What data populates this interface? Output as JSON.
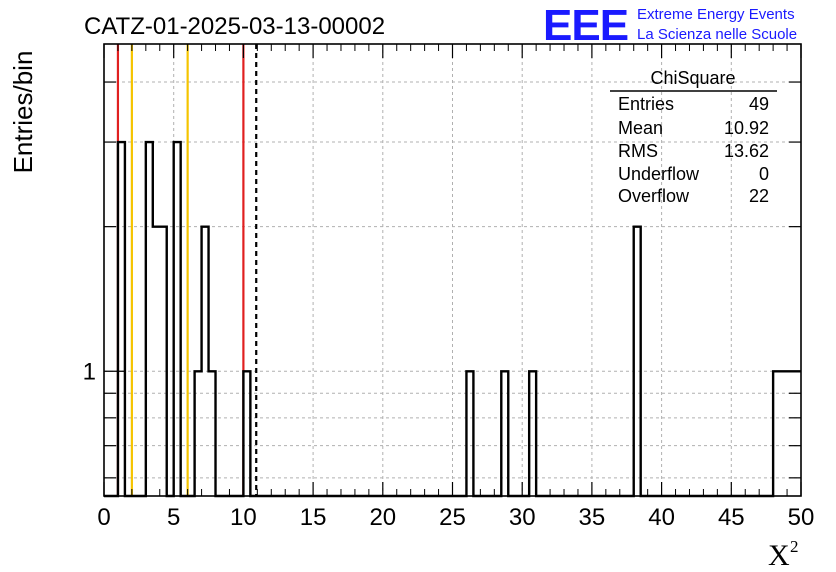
{
  "title": "CATZ-01-2025-03-13-00002",
  "logo": {
    "mark": "EEE",
    "line1": "Extreme Energy Events",
    "line2": "La Scienza nelle Scuole",
    "color": "#1a1aff"
  },
  "stats": {
    "name": "ChiSquare",
    "rows": [
      {
        "label": "Entries",
        "value": "49"
      },
      {
        "label": "Mean",
        "value": "10.92"
      },
      {
        "label": "RMS",
        "value": "13.62"
      },
      {
        "label": "Underflow",
        "value": "0"
      },
      {
        "label": "Overflow",
        "value": "22"
      }
    ]
  },
  "chart_data": {
    "type": "bar",
    "histogram": true,
    "xlabel": "X",
    "xlabel_superscript": "2",
    "ylabel": "Entries/bin",
    "xlim": [
      0,
      50
    ],
    "ylim": [
      0.55,
      4.8
    ],
    "y_log": true,
    "grid": true,
    "x_ticks": [
      0,
      5,
      10,
      15,
      20,
      25,
      30,
      35,
      40,
      45,
      50
    ],
    "y_tick_labels": [
      {
        "value": 1,
        "label": "1"
      }
    ],
    "bin_width": 0.5,
    "bins": [
      {
        "x0": 1.0,
        "value": 3
      },
      {
        "x0": 3.0,
        "value": 3
      },
      {
        "x0": 3.5,
        "value": 2
      },
      {
        "x0": 4.0,
        "value": 2
      },
      {
        "x0": 5.0,
        "value": 3
      },
      {
        "x0": 6.5,
        "value": 1
      },
      {
        "x0": 7.0,
        "value": 2
      },
      {
        "x0": 7.5,
        "value": 1
      },
      {
        "x0": 10.0,
        "value": 1
      },
      {
        "x0": 26.0,
        "value": 1
      },
      {
        "x0": 28.5,
        "value": 1
      },
      {
        "x0": 30.5,
        "value": 1
      },
      {
        "x0": 38.0,
        "value": 2
      },
      {
        "x0": 48.0,
        "value": 1
      },
      {
        "x0": 48.5,
        "value": 1
      },
      {
        "x0": 49.0,
        "value": 1
      },
      {
        "x0": 49.5,
        "value": 1
      }
    ],
    "vlines": [
      {
        "x": 1.0,
        "color": "#e02020",
        "style": "solid"
      },
      {
        "x": 2.0,
        "color": "#f5c400",
        "style": "solid"
      },
      {
        "x": 6.0,
        "color": "#f5c400",
        "style": "solid"
      },
      {
        "x": 10.0,
        "color": "#e02020",
        "style": "solid"
      },
      {
        "x": 10.92,
        "color": "#000000",
        "style": "dashed"
      }
    ]
  }
}
